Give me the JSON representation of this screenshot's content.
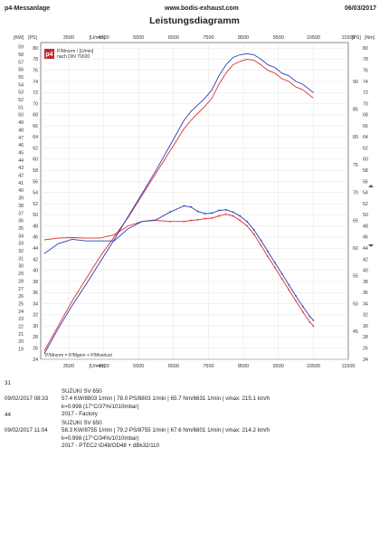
{
  "header": {
    "left": "p4-Messanlage",
    "center": "www.bodis-exhaust.com",
    "right": "06/03/2017",
    "title": "Leistungsdiagramm"
  },
  "chart_data": {
    "type": "line",
    "title": "Leistungsdiagramm",
    "x_unit": "[U/min]",
    "x_ticks": [
      "3500",
      "4500",
      "5500",
      "6500",
      "7500",
      "8500",
      "9500",
      "10500",
      "11500"
    ],
    "xlim": [
      2700,
      11500
    ],
    "left_axis": {
      "units": [
        "[KW]",
        "[PS]"
      ],
      "kw_ticks": [
        "59",
        "58",
        "57",
        "56",
        "55",
        "54",
        "53",
        "52",
        "51",
        "50",
        "49",
        "48",
        "47",
        "46",
        "45",
        "44",
        "43",
        "42",
        "41",
        "40",
        "39",
        "38",
        "37",
        "36",
        "35",
        "34",
        "33",
        "32",
        "31",
        "30",
        "29",
        "28",
        "27",
        "26",
        "25",
        "24",
        "23",
        "22",
        "21",
        "20",
        "19"
      ],
      "ps_ticks": [
        "80",
        "78",
        "76",
        "74",
        "72",
        "70",
        "68",
        "66",
        "64",
        "62",
        "60",
        "58",
        "56",
        "54",
        "52",
        "50",
        "48",
        "46",
        "44",
        "42",
        "40",
        "38",
        "36",
        "34",
        "32",
        "30",
        "28",
        "26",
        "24"
      ],
      "ps_range": [
        24,
        81
      ]
    },
    "right_axis": {
      "units": [
        "[PS]",
        "[Nm]"
      ],
      "ps_ticks": [
        "80",
        "78",
        "76",
        "74",
        "72",
        "70",
        "68",
        "66",
        "64",
        "62",
        "60",
        "58",
        "56",
        "54",
        "52",
        "50",
        "48",
        "46",
        "44",
        "42",
        "40",
        "38",
        "36",
        "34",
        "32",
        "30",
        "28",
        "26",
        "24"
      ],
      "nm_ticks": [
        "90",
        "85",
        "80",
        "75",
        "70",
        "65",
        "60",
        "55",
        "50",
        "45"
      ],
      "nm_range": [
        40,
        97
      ]
    },
    "legend": {
      "logo": "p4",
      "line1": "P/Mnorm / [U/min]",
      "line2": "nach DIN 70020",
      "bottom": "P/Mnorm = P/Mgem + P/Mverlust"
    },
    "series": [
      {
        "run": "31",
        "color": "#e03030",
        "power_ps": {
          "x": [
            2800,
            3200,
            3600,
            4000,
            4400,
            4800,
            5200,
            5600,
            6000,
            6400,
            6800,
            7000,
            7200,
            7400,
            7600,
            7800,
            8000,
            8200,
            8400,
            8600,
            8800,
            9000,
            9200,
            9400,
            9600,
            9800,
            10000,
            10200,
            10400,
            10500
          ],
          "y": [
            25.5,
            30,
            34.5,
            38.5,
            42.5,
            46,
            49.5,
            53.5,
            57.5,
            61.5,
            65.5,
            67,
            68.3,
            69.5,
            71,
            73.5,
            75.5,
            77,
            77.6,
            78,
            77.8,
            77,
            76,
            75.5,
            74.5,
            74,
            73,
            72.5,
            71.5,
            71
          ]
        },
        "torque_nm": {
          "x": [
            2800,
            3200,
            3600,
            4000,
            4400,
            4800,
            5200,
            5600,
            6000,
            6400,
            6800,
            7000,
            7200,
            7400,
            7600,
            7800,
            8000,
            8200,
            8400,
            8600,
            8800,
            9000,
            9200,
            9400,
            9600,
            9800,
            10000,
            10200,
            10400,
            10500
          ],
          "y": [
            61.5,
            61.8,
            61.9,
            61.8,
            61.8,
            62.4,
            64,
            64.8,
            65,
            64.8,
            64.8,
            65,
            65.1,
            65.3,
            65.4,
            65.8,
            66.1,
            65.8,
            65,
            64,
            62.5,
            60.5,
            58.5,
            56.5,
            54.5,
            52.5,
            50.5,
            48.5,
            46.7,
            46
          ]
        }
      },
      {
        "run": "44",
        "color": "#2a3fb0",
        "power_ps": {
          "x": [
            2800,
            3200,
            3600,
            4000,
            4400,
            4800,
            5200,
            5600,
            6000,
            6400,
            6800,
            7000,
            7200,
            7400,
            7600,
            7800,
            8000,
            8200,
            8400,
            8600,
            8800,
            9000,
            9200,
            9400,
            9600,
            9800,
            10000,
            10200,
            10400,
            10500
          ],
          "y": [
            25,
            29.5,
            33.7,
            37.5,
            41.5,
            45.5,
            49.7,
            53.8,
            58,
            62.5,
            67,
            68.6,
            69.8,
            71,
            72.5,
            75,
            77,
            78.3,
            78.8,
            79,
            78.8,
            78,
            77,
            76.5,
            75.5,
            75,
            74,
            73.5,
            72.5,
            72
          ]
        },
        "torque_nm": {
          "x": [
            2800,
            3200,
            3600,
            4000,
            4400,
            4800,
            5200,
            5600,
            6000,
            6400,
            6800,
            7000,
            7200,
            7400,
            7600,
            7800,
            8000,
            8200,
            8400,
            8600,
            8800,
            9000,
            9200,
            9400,
            9600,
            9800,
            10000,
            10200,
            10400,
            10500
          ],
          "y": [
            59,
            60.8,
            61.6,
            61.3,
            61.3,
            61.3,
            63.5,
            64.8,
            65.1,
            66.5,
            67.6,
            67.4,
            66.6,
            66.2,
            66.3,
            66.8,
            66.9,
            66.5,
            65.8,
            64.8,
            63.3,
            61.4,
            59.4,
            57.4,
            55.4,
            53.4,
            51.4,
            49.5,
            47.7,
            47
          ]
        }
      }
    ]
  },
  "runs": [
    {
      "number": "31",
      "line1a": "SUZUKI SV 650",
      "line2a": "09/02/2017  08:33",
      "line2b": "57.4 KW/8803 1/min  |  78.0 PS/8803 1/min  |  65.7 Nm/6631 1/min  |  vmax: 215.1 km/h",
      "line3": "k=0.998 (17°C/37%/1010mbar)",
      "line4": "2017 - Factory"
    },
    {
      "number": "44",
      "line1a": "SUZUKI SV 650",
      "line2a": "09/02/2017  11:04",
      "line2b": "58.3 KW/8755 1/min  |  79.2 PS/8755 1/min  |  67.6 Nm/6801 1/min  |  vmax: 214.2 km/h",
      "line3": "k=0.998 (17°C/34%/1010mbar)",
      "line4": "2017 - PTEC2 ID48/OD48 + dBk32/110"
    }
  ]
}
